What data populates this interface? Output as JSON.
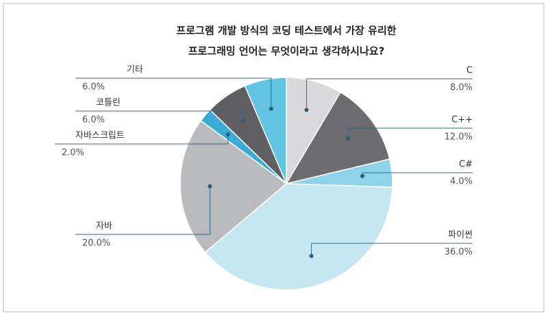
{
  "chart_data": {
    "type": "pie",
    "title": [
      "프로그램 개발 방식의 코딩 테스트에서 가장 유리한",
      "프로그래밍 언어는 무엇이라고 생각하시나요?"
    ],
    "categories": [
      "C",
      "C++",
      "C#",
      "파이썬",
      "자바",
      "자바스크립트",
      "코틀린",
      "기타"
    ],
    "values": [
      8,
      12,
      4,
      36,
      20,
      2,
      6,
      6
    ],
    "value_labels": [
      "8.0%",
      "12.0%",
      "4.0%",
      "36.0%",
      "20.0%",
      "2.0%",
      "6.0%",
      "6.0%"
    ],
    "colors": [
      "#d9d9db",
      "#6b6b70",
      "#8fd3ea",
      "#c6e6f1",
      "#b9babe",
      "#3aaad6",
      "#5e5e63",
      "#63c3e3"
    ]
  }
}
